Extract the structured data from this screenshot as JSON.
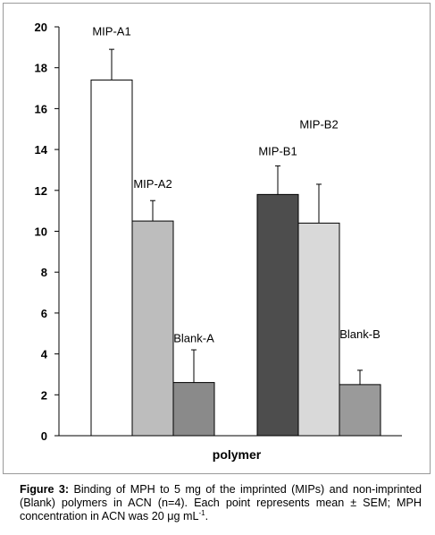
{
  "chart_data": {
    "type": "bar",
    "xlabel": "polymer",
    "ylabel": "",
    "ylim": [
      0,
      20
    ],
    "yticks": [
      0,
      2,
      4,
      6,
      8,
      10,
      12,
      14,
      16,
      18,
      20
    ],
    "grid": false,
    "groups": [
      {
        "bars": [
          {
            "label": "MIP-A1",
            "value": 17.4,
            "error": 1.5,
            "color": "#ffffff"
          },
          {
            "label": "MIP-A2",
            "value": 10.5,
            "error": 1.0,
            "color": "#bdbdbd"
          },
          {
            "label": "Blank-A",
            "value": 2.6,
            "error": 1.6,
            "color": "#8a8a8a"
          }
        ]
      },
      {
        "bars": [
          {
            "label": "MIP-B1",
            "value": 11.8,
            "error": 1.4,
            "color": "#4d4d4d"
          },
          {
            "label": "MIP-B2",
            "value": 10.4,
            "error": 1.9,
            "color": "#d9d9d9"
          },
          {
            "label": "Blank-B",
            "value": 2.5,
            "error": 0.7,
            "color": "#9a9a9a"
          }
        ]
      }
    ]
  },
  "caption": {
    "label": "Figure 3:",
    "text_before_sup": " Binding of MPH to 5 mg of the imprinted (MIPs) and non-imprinted (Blank) polymers in ACN (n=4). Each point represents mean ± SEM; MPH concentration in ACN was 20 μg mL",
    "sup": "-1",
    "text_after_sup": "."
  }
}
